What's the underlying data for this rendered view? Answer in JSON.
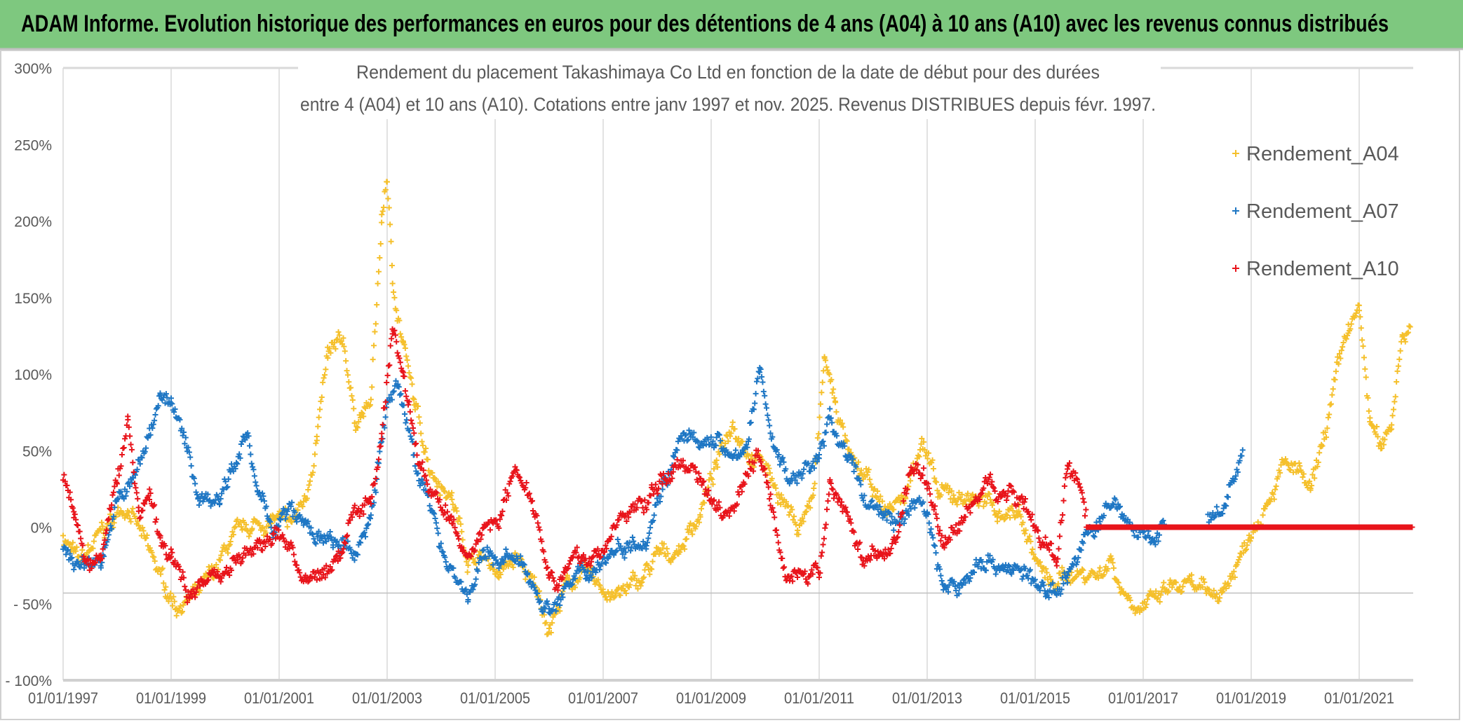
{
  "header": {
    "title": "ADAM Informe. Evolution historique des performances en euros pour des détentions de 4 ans (A04) à 10 ans (A10) avec les revenus connus distribués",
    "color": "#7ec87f"
  },
  "chart_data": {
    "type": "scatter",
    "marker": "plus",
    "title_line1": "Rendement du placement Takashimaya Co Ltd en fonction de la date de début pour des durées",
    "title_line2": "entre 4 (A04) et 10 ans (A10). Cotations entre janv 1997 et nov. 2025. Revenus DISTRIBUES depuis févr. 1997.",
    "xlim": [
      "1997-01-01",
      "2022-01-01"
    ],
    "ylim": [
      -100,
      300
    ],
    "x_ticks": [
      "01/01/1997",
      "01/01/1999",
      "01/01/2001",
      "01/01/2003",
      "01/01/2005",
      "01/01/2007",
      "01/01/2009",
      "01/01/2011",
      "01/01/2013",
      "01/01/2015",
      "01/01/2017",
      "01/01/2019",
      "01/01/2021"
    ],
    "y_ticks": [
      {
        "value": 300,
        "label": "300%"
      },
      {
        "value": 250,
        "label": "250%"
      },
      {
        "value": 200,
        "label": "200%"
      },
      {
        "value": 150,
        "label": "150%"
      },
      {
        "value": 100,
        "label": "100%"
      },
      {
        "value": 50,
        "label": "50%"
      },
      {
        "value": 0,
        "label": "0%"
      },
      {
        "value": -50,
        "label": "- 50%"
      },
      {
        "value": -100,
        "label": "- 100%"
      }
    ],
    "grid": "vertical",
    "legend_position": "right",
    "series": [
      {
        "name": "Rendement_A04",
        "color": "#f5c02c",
        "points": [
          [
            1997.0,
            -5
          ],
          [
            1997.3,
            -25
          ],
          [
            1997.8,
            0
          ],
          [
            1998.2,
            15
          ],
          [
            1998.5,
            -10
          ],
          [
            1998.9,
            -40
          ],
          [
            1999.1,
            -50
          ],
          [
            1999.5,
            -45
          ],
          [
            1999.8,
            -30
          ],
          [
            2000.1,
            -10
          ],
          [
            2000.5,
            0
          ],
          [
            2000.9,
            5
          ],
          [
            2001.2,
            0
          ],
          [
            2001.5,
            20
          ],
          [
            2001.7,
            60
          ],
          [
            2001.9,
            110
          ],
          [
            2002.2,
            120
          ],
          [
            2002.4,
            70
          ],
          [
            2002.7,
            80
          ],
          [
            2002.9,
            200
          ],
          [
            2003.0,
            230
          ],
          [
            2003.1,
            160
          ],
          [
            2003.3,
            120
          ],
          [
            2003.5,
            80
          ],
          [
            2003.8,
            40
          ],
          [
            2004.2,
            20
          ],
          [
            2004.5,
            -20
          ],
          [
            2004.8,
            -20
          ],
          [
            2005.1,
            -30
          ],
          [
            2005.4,
            -20
          ],
          [
            2005.8,
            -45
          ],
          [
            2006.0,
            -65
          ],
          [
            2006.3,
            -40
          ],
          [
            2006.6,
            -30
          ],
          [
            2007.0,
            -40
          ],
          [
            2007.3,
            -45
          ],
          [
            2007.7,
            -35
          ],
          [
            2008.0,
            -20
          ],
          [
            2008.4,
            -15
          ],
          [
            2008.8,
            10
          ],
          [
            2009.1,
            40
          ],
          [
            2009.4,
            70
          ],
          [
            2009.7,
            50
          ],
          [
            2010.0,
            40
          ],
          [
            2010.3,
            20
          ],
          [
            2010.6,
            0
          ],
          [
            2010.9,
            20
          ],
          [
            2011.1,
            110
          ],
          [
            2011.3,
            80
          ],
          [
            2011.6,
            40
          ],
          [
            2011.9,
            30
          ],
          [
            2012.2,
            10
          ],
          [
            2012.6,
            20
          ],
          [
            2012.9,
            60
          ],
          [
            2013.2,
            20
          ],
          [
            2013.5,
            20
          ],
          [
            2013.9,
            20
          ],
          [
            2014.3,
            10
          ],
          [
            2014.7,
            10
          ],
          [
            2015.0,
            -20
          ],
          [
            2015.3,
            -40
          ],
          [
            2015.6,
            -30
          ],
          [
            2015.9,
            -30
          ],
          [
            2016.2,
            -30
          ],
          [
            2016.4,
            -20
          ],
          [
            2016.6,
            -40
          ],
          [
            2016.9,
            -50
          ],
          [
            2017.2,
            -50
          ],
          [
            2017.5,
            -40
          ],
          [
            2017.9,
            -40
          ],
          [
            2018.2,
            -45
          ],
          [
            2018.5,
            -40
          ],
          [
            2018.8,
            -20
          ],
          [
            2019.0,
            0
          ],
          [
            2019.3,
            20
          ],
          [
            2019.6,
            40
          ],
          [
            2019.9,
            35
          ],
          [
            2020.1,
            20
          ],
          [
            2020.3,
            50
          ],
          [
            2020.6,
            100
          ],
          [
            2020.8,
            130
          ],
          [
            2021.0,
            140
          ],
          [
            2021.2,
            70
          ],
          [
            2021.4,
            50
          ],
          [
            2021.6,
            70
          ],
          [
            2021.8,
            130
          ],
          [
            2021.95,
            130
          ]
        ]
      },
      {
        "name": "Rendement_A07",
        "color": "#1f77c4",
        "points": [
          [
            1997.0,
            -15
          ],
          [
            1997.3,
            -25
          ],
          [
            1997.7,
            -20
          ],
          [
            1998.0,
            15
          ],
          [
            1998.3,
            30
          ],
          [
            1998.6,
            60
          ],
          [
            1998.8,
            90
          ],
          [
            1999.0,
            80
          ],
          [
            1999.3,
            50
          ],
          [
            1999.5,
            20
          ],
          [
            1999.9,
            20
          ],
          [
            2000.1,
            40
          ],
          [
            2000.4,
            60
          ],
          [
            2000.6,
            20
          ],
          [
            2000.9,
            0
          ],
          [
            2001.2,
            10
          ],
          [
            2001.5,
            0
          ],
          [
            2001.8,
            -10
          ],
          [
            2002.0,
            -10
          ],
          [
            2002.4,
            -20
          ],
          [
            2002.7,
            10
          ],
          [
            2003.0,
            80
          ],
          [
            2003.2,
            90
          ],
          [
            2003.5,
            50
          ],
          [
            2003.8,
            10
          ],
          [
            2004.1,
            -20
          ],
          [
            2004.5,
            -45
          ],
          [
            2004.8,
            -20
          ],
          [
            2005.2,
            -20
          ],
          [
            2005.6,
            -30
          ],
          [
            2006.0,
            -55
          ],
          [
            2006.3,
            -40
          ],
          [
            2006.7,
            -30
          ],
          [
            2007.0,
            -20
          ],
          [
            2007.4,
            -10
          ],
          [
            2007.8,
            -5
          ],
          [
            2008.1,
            30
          ],
          [
            2008.5,
            60
          ],
          [
            2008.8,
            50
          ],
          [
            2009.1,
            60
          ],
          [
            2009.4,
            40
          ],
          [
            2009.7,
            60
          ],
          [
            2009.9,
            100
          ],
          [
            2010.2,
            50
          ],
          [
            2010.5,
            30
          ],
          [
            2010.8,
            40
          ],
          [
            2011.0,
            45
          ],
          [
            2011.2,
            70
          ],
          [
            2011.5,
            50
          ],
          [
            2011.8,
            20
          ],
          [
            2012.2,
            10
          ],
          [
            2012.5,
            0
          ],
          [
            2012.8,
            20
          ],
          [
            2013.0,
            10
          ],
          [
            2013.3,
            -40
          ],
          [
            2013.6,
            -40
          ],
          [
            2014.0,
            -20
          ],
          [
            2014.4,
            -25
          ],
          [
            2014.8,
            -30
          ],
          [
            2015.2,
            -45
          ],
          [
            2015.6,
            -30
          ],
          [
            2015.9,
            -10
          ],
          [
            2016.2,
            5
          ],
          [
            2016.5,
            15
          ],
          [
            2016.8,
            0
          ],
          [
            2017.1,
            -10
          ],
          [
            2017.4,
            0
          ],
          [
            2017.8,
            0
          ],
          [
            2018.2,
            0
          ],
          [
            2018.5,
            10
          ],
          [
            2018.85,
            50
          ]
        ]
      },
      {
        "name": "Rendement_A10",
        "color": "#e8141b",
        "points": [
          [
            1997.0,
            35
          ],
          [
            1997.2,
            10
          ],
          [
            1997.4,
            -25
          ],
          [
            1997.7,
            -20
          ],
          [
            1998.0,
            30
          ],
          [
            1998.2,
            70
          ],
          [
            1998.4,
            10
          ],
          [
            1998.6,
            20
          ],
          [
            1998.8,
            -10
          ],
          [
            1999.0,
            -20
          ],
          [
            1999.3,
            -40
          ],
          [
            1999.6,
            -35
          ],
          [
            1999.9,
            -30
          ],
          [
            2000.2,
            -20
          ],
          [
            2000.6,
            -15
          ],
          [
            2000.9,
            -5
          ],
          [
            2001.2,
            -10
          ],
          [
            2001.5,
            -40
          ],
          [
            2001.8,
            -30
          ],
          [
            2002.1,
            -20
          ],
          [
            2002.4,
            10
          ],
          [
            2002.7,
            20
          ],
          [
            2002.9,
            60
          ],
          [
            2003.1,
            130
          ],
          [
            2003.3,
            100
          ],
          [
            2003.6,
            40
          ],
          [
            2003.9,
            20
          ],
          [
            2004.2,
            0
          ],
          [
            2004.5,
            -20
          ],
          [
            2004.8,
            0
          ],
          [
            2005.1,
            10
          ],
          [
            2005.4,
            40
          ],
          [
            2005.7,
            20
          ],
          [
            2006.0,
            -30
          ],
          [
            2006.3,
            -30
          ],
          [
            2006.6,
            -20
          ],
          [
            2006.9,
            -20
          ],
          [
            2007.2,
            0
          ],
          [
            2007.5,
            10
          ],
          [
            2007.9,
            20
          ],
          [
            2008.3,
            40
          ],
          [
            2008.7,
            40
          ],
          [
            2009.0,
            20
          ],
          [
            2009.3,
            10
          ],
          [
            2009.6,
            30
          ],
          [
            2009.9,
            50
          ],
          [
            2010.1,
            20
          ],
          [
            2010.4,
            -30
          ],
          [
            2010.7,
            -30
          ],
          [
            2011.0,
            -35
          ],
          [
            2011.2,
            30
          ],
          [
            2011.5,
            10
          ],
          [
            2011.8,
            -20
          ],
          [
            2012.1,
            -20
          ],
          [
            2012.4,
            -10
          ],
          [
            2012.7,
            40
          ],
          [
            2013.0,
            30
          ],
          [
            2013.3,
            -10
          ],
          [
            2013.6,
            0
          ],
          [
            2013.9,
            20
          ],
          [
            2014.2,
            30
          ],
          [
            2014.5,
            20
          ],
          [
            2014.8,
            20
          ],
          [
            2015.1,
            -10
          ],
          [
            2015.4,
            -20
          ],
          [
            2015.6,
            40
          ],
          [
            2015.85,
            20
          ],
          [
            2015.95,
            0
          ],
          [
            2021.99,
            0
          ]
        ]
      }
    ]
  }
}
